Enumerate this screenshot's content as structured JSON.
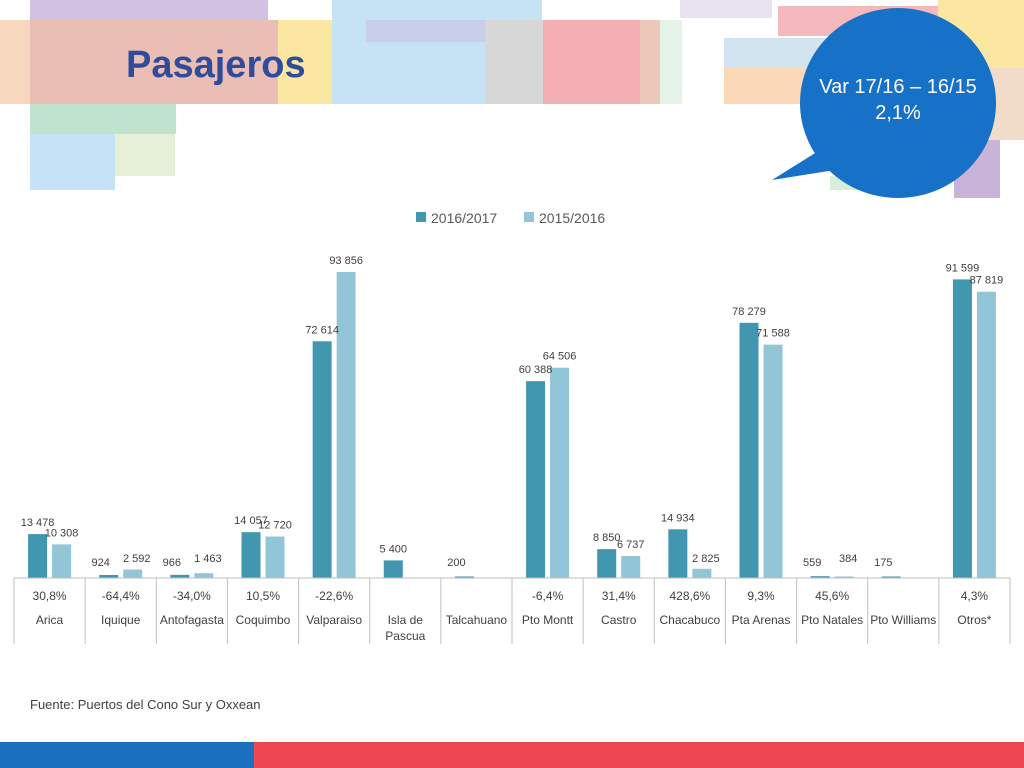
{
  "slide": {
    "title": "Pasajeros",
    "callout_line1": "Var 17/16 – 16/15",
    "callout_line2": "2,1%",
    "source": "Fuente: Puertos del Cono Sur y Oxxean"
  },
  "colors": {
    "series_2016_2017": "#4297b0",
    "series_2015_2016": "#92c5d7",
    "title": "#2e4c9b",
    "bubble": "#1771c6",
    "footer_blue": "#1a6fbf",
    "footer_red": "#ee4751"
  },
  "chart_data": {
    "type": "bar",
    "title": "",
    "xlabel": "",
    "ylabel": "",
    "ylim": [
      0,
      100000
    ],
    "legend_position": "top",
    "categories": [
      "Arica",
      "Iquique",
      "Antofagasta",
      "Coquimbo",
      "Valparaiso",
      "Isla de Pascua",
      "Talcahuano",
      "Pto Montt",
      "Castro",
      "Chacabuco",
      "Pta Arenas",
      "Pto Natales",
      "Pto Williams",
      "Otros*"
    ],
    "category_label_lines": [
      [
        "Arica"
      ],
      [
        "Iquique"
      ],
      [
        "Antofagasta"
      ],
      [
        "Coquimbo"
      ],
      [
        "Valparaiso"
      ],
      [
        "Isla de",
        "Pascua"
      ],
      [
        "Talcahuano"
      ],
      [
        "Pto Montt"
      ],
      [
        "Castro"
      ],
      [
        "Chacabuco"
      ],
      [
        "Pta Arenas"
      ],
      [
        "Pto Natales"
      ],
      [
        "Pto Williams"
      ],
      [
        "Otros*"
      ]
    ],
    "variation": [
      "30,8%",
      "-64,4%",
      "-34,0%",
      "10,5%",
      "-22,6%",
      "",
      "",
      "-6,4%",
      "31,4%",
      "428,6%",
      "9,3%",
      "45,6%",
      "",
      "4,3%"
    ],
    "series": [
      {
        "name": "2016/2017",
        "values": [
          13478,
          924,
          966,
          14057,
          72614,
          5400,
          200,
          60388,
          8850,
          14934,
          78279,
          559,
          175,
          91599
        ],
        "labels": [
          "13 478",
          "924",
          "966",
          "14 057",
          "72 614",
          "5 400",
          "200",
          "60 388",
          "8 850",
          "14 934",
          "78 279",
          "559",
          "175",
          "91 599"
        ]
      },
      {
        "name": "2015/2016",
        "values": [
          10308,
          2592,
          1463,
          12720,
          93856,
          null,
          null,
          64506,
          6737,
          2825,
          71588,
          384,
          null,
          87819
        ],
        "labels": [
          "10 308",
          "2 592",
          "1 463",
          "12 720",
          "93 856",
          "",
          "",
          "64 506",
          "6 737",
          "2 825",
          "71 588",
          "384",
          "",
          "87 819"
        ]
      }
    ]
  }
}
